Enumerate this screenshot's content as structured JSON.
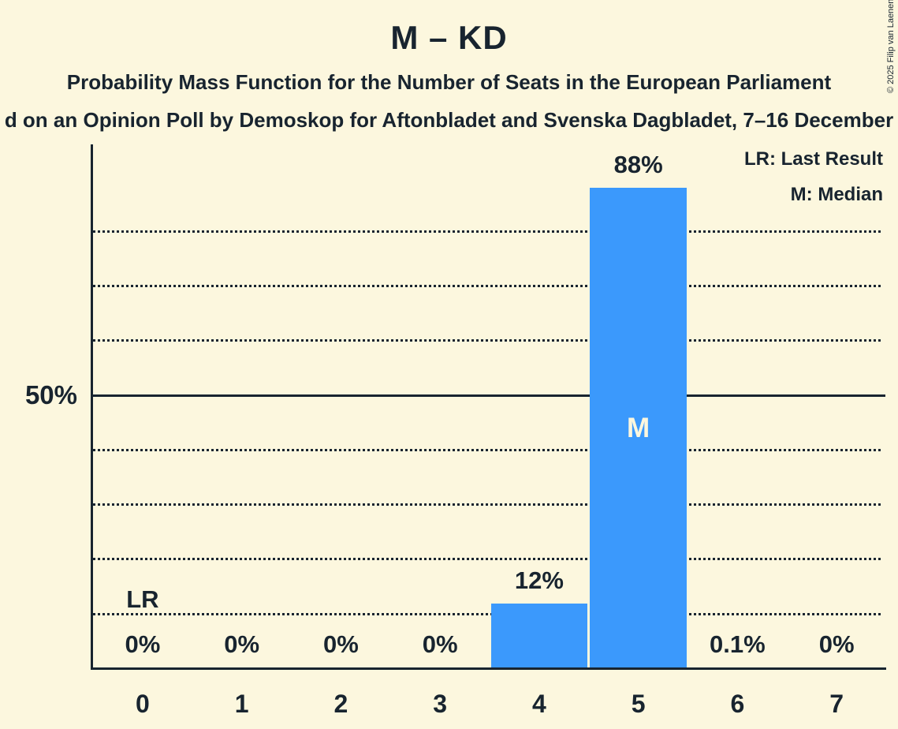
{
  "title": "M – KD",
  "subtitles": {
    "line1": "Probability Mass Function for the Number of Seats in the European Parliament",
    "line2": "d on an Opinion Poll by Demoskop for Aftonbladet and Svenska Dagbladet, 7–16 December"
  },
  "copyright": "© 2025 Filip van Laenen",
  "legend": {
    "last_result": "LR: Last Result",
    "median": "M: Median"
  },
  "annotations": {
    "last_result": "LR",
    "median": "M"
  },
  "colors": {
    "background": "#FCF7DE",
    "ink": "#18242F",
    "bar": "#3B99FC"
  },
  "chart_data": {
    "type": "bar",
    "title": "M – KD",
    "categories": [
      "0",
      "1",
      "2",
      "3",
      "4",
      "5",
      "6",
      "7"
    ],
    "values": [
      0,
      0,
      0,
      0,
      12,
      88,
      0.1,
      0
    ],
    "value_labels": [
      "0%",
      "0%",
      "0%",
      "0%",
      "12%",
      "88%",
      "0.1%",
      "0%"
    ],
    "median_category": "5",
    "last_result_category": "0",
    "y_tick_values": [
      50
    ],
    "y_tick_labels": [
      "50%"
    ],
    "gridlines_percent": [
      10,
      20,
      30,
      40,
      50,
      60,
      70,
      80
    ],
    "solid_line_percent": 50,
    "ylim": [
      0,
      96
    ],
    "grid": "dotted",
    "legend_position": "top-right"
  }
}
